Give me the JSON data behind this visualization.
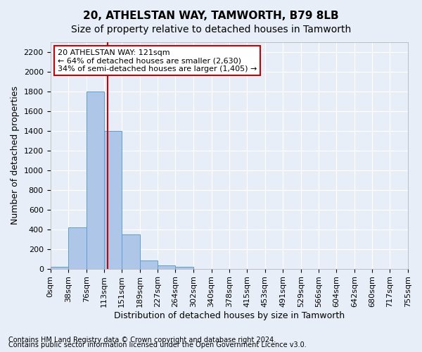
{
  "title1": "20, ATHELSTAN WAY, TAMWORTH, B79 8LB",
  "title2": "Size of property relative to detached houses in Tamworth",
  "xlabel": "Distribution of detached houses by size in Tamworth",
  "ylabel": "Number of detached properties",
  "annotation_line1": "20 ATHELSTAN WAY: 121sqm",
  "annotation_line2": "← 64% of detached houses are smaller (2,630)",
  "annotation_line3": "34% of semi-detached houses are larger (1,405) →",
  "footnote1": "Contains HM Land Registry data © Crown copyright and database right 2024.",
  "footnote2": "Contains public sector information licensed under the Open Government Licence v3.0.",
  "bin_edges": [
    0,
    38,
    76,
    113,
    151,
    189,
    227,
    264,
    302,
    340,
    378,
    415,
    453,
    491,
    529,
    566,
    604,
    642,
    680,
    717,
    755
  ],
  "bar_heights": [
    15,
    420,
    1800,
    1400,
    350,
    80,
    30,
    20,
    0,
    0,
    0,
    0,
    0,
    0,
    0,
    0,
    0,
    0,
    0,
    0
  ],
  "bar_color": "#aec6e8",
  "bar_edge_color": "#5a9fd4",
  "red_line_x": 121,
  "ylim": [
    0,
    2300
  ],
  "yticks": [
    0,
    200,
    400,
    600,
    800,
    1000,
    1200,
    1400,
    1600,
    1800,
    2000,
    2200
  ],
  "bg_color": "#e8eef8",
  "plot_bg_color": "#e8eef8",
  "grid_color": "#ffffff",
  "annotation_box_color": "#ffffff",
  "annotation_box_edge_color": "#cc0000",
  "red_line_color": "#cc0000",
  "title_fontsize": 11,
  "subtitle_fontsize": 10,
  "axis_label_fontsize": 9,
  "tick_fontsize": 8,
  "annotation_fontsize": 8,
  "footnote_fontsize": 7
}
